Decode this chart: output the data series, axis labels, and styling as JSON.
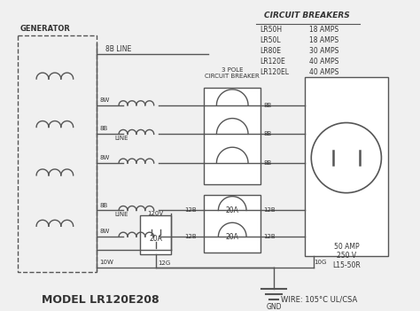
{
  "bg_color": "#f0f0f0",
  "line_color": "#555555",
  "title": "MODEL LR120E208",
  "wire_note": "WIRE: 105°C UL/CSA",
  "gnd_label": "GND",
  "generator_label": "GENERATOR",
  "cb_title": "CIRCUIT BREAKERS",
  "cb_entries": [
    [
      "LR50H",
      "18 AMPS"
    ],
    [
      "LR50L",
      "18 AMPS"
    ],
    [
      "LR80E",
      "30 AMPS"
    ],
    [
      "LR120E",
      "40 AMPS"
    ],
    [
      "LR120EL",
      "40 AMPS"
    ]
  ],
  "cb_box_label": "3 POLE\nCIRCUIT BREAKER",
  "outlet_label": "50 AMP\n250 V\nL15-50R",
  "breaker_labels": [
    "8B",
    "8B",
    "8B"
  ],
  "small_breaker_20a": [
    "20A",
    "20A"
  ],
  "outlet_120v_label": "120V",
  "outlet_20a_label": "20A",
  "line_label": "LINE",
  "line_8b_top": "8B LINE",
  "wire_12g": "12G",
  "wire_10w": "10W",
  "wire_10g": "10G"
}
